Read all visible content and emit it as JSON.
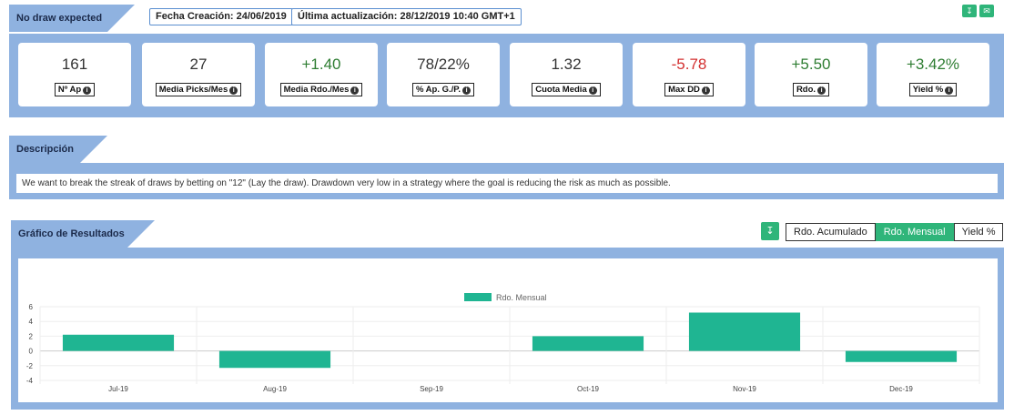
{
  "header": {
    "strategy_name": "No draw expected",
    "created": "Fecha Creación: 24/06/2019",
    "updated": "Última actualización: 28/12/2019 10:40 GMT+1",
    "icons": [
      "download-icon",
      "mail-icon"
    ]
  },
  "stats": [
    {
      "value": "161",
      "label": "Nº Ap",
      "color": "#333333"
    },
    {
      "value": "27",
      "label": "Media Picks/Mes",
      "color": "#333333"
    },
    {
      "value": "+1.40",
      "label": "Media Rdo./Mes",
      "color": "#2e7d32"
    },
    {
      "value": "78/22%",
      "label": "% Ap. G./P.",
      "color": "#333333"
    },
    {
      "value": "1.32",
      "label": "Cuota Media",
      "color": "#333333"
    },
    {
      "value": "-5.78",
      "label": "Max DD",
      "color": "#d32f2f"
    },
    {
      "value": "+5.50",
      "label": "Rdo.",
      "color": "#2e7d32"
    },
    {
      "value": "+3.42%",
      "label": "Yield %",
      "color": "#2e7d32"
    }
  ],
  "description": {
    "title": "Descripción",
    "text": "We want to break the streak of draws by betting on \"12\" (Lay the draw). Drawdown very low in a strategy where the goal is reducing the risk as much as possible."
  },
  "results": {
    "title": "Gráfico de Resultados",
    "buttons": [
      "Rdo. Acumulado",
      "Rdo. Mensual",
      "Yield %"
    ],
    "active_button": "Rdo. Mensual"
  },
  "chart_data": {
    "type": "bar",
    "categories": [
      "Jul-19",
      "Aug-19",
      "Sep-19",
      "Oct-19",
      "Nov-19",
      "Dec-19"
    ],
    "series": [
      {
        "name": "Rdo. Mensual",
        "values": [
          2.2,
          -2.3,
          0,
          2.0,
          5.2,
          -1.5
        ],
        "color": "#1fb592"
      }
    ],
    "y_ticks": [
      6,
      4,
      2,
      0,
      -2,
      -4
    ],
    "ylim": [
      -4,
      6
    ],
    "legend": "top-center",
    "grid": true
  },
  "colors": {
    "accent_blue": "#8fb2e0",
    "accent_green": "#2fb57a",
    "bar": "#1fb592"
  }
}
